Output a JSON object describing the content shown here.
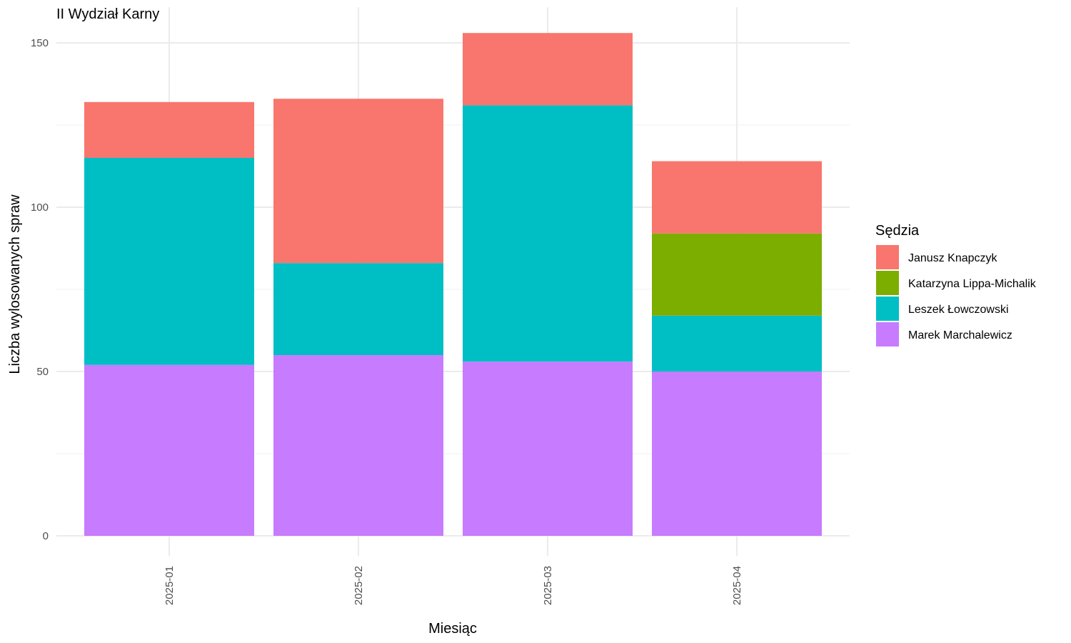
{
  "chart_data": {
    "type": "bar",
    "stacked": true,
    "title": "II Wydział Karny",
    "xlabel": "Miesiąc",
    "ylabel": "Liczba wylosowanych spraw",
    "categories": [
      "2025-01",
      "2025-02",
      "2025-03",
      "2025-04"
    ],
    "ylim": [
      -6,
      160
    ],
    "yticks": [
      0,
      50,
      100,
      150
    ],
    "grid": true,
    "legend": {
      "title": "Sędzia",
      "position": "right"
    },
    "series": [
      {
        "name": "Marek Marchalewicz",
        "color": "#C77CFF",
        "values": [
          52,
          55,
          53,
          50
        ]
      },
      {
        "name": "Leszek Łowczowski",
        "color": "#00BFC4",
        "values": [
          63,
          28,
          78,
          17
        ]
      },
      {
        "name": "Katarzyna Lippa-Michalik",
        "color": "#7CAE00",
        "values": [
          0,
          0,
          0,
          25
        ]
      },
      {
        "name": "Janusz Knapczyk",
        "color": "#F8766D",
        "values": [
          17,
          50,
          22,
          22
        ]
      }
    ],
    "legend_order": [
      "Janusz Knapczyk",
      "Katarzyna Lippa-Michalik",
      "Leszek Łowczowski",
      "Marek Marchalewicz"
    ]
  }
}
